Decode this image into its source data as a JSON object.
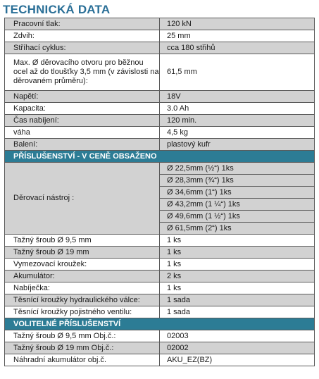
{
  "title": "TECHNICKÁ DATA",
  "specs": [
    {
      "label": "Pracovní tlak:",
      "value": "120 kN"
    },
    {
      "label": "Zdvih:",
      "value": "25 mm"
    },
    {
      "label": "Stříhací cyklus:",
      "value": "cca 180 střihů"
    },
    {
      "label": "Max. Ø děrovacího otvoru pro běžnou ocel až do tloušťky 3,5 mm (v závislosti na děrovaném průměru):",
      "value": "61,5 mm"
    },
    {
      "label": "Napětí:",
      "value": "18V"
    },
    {
      "label": "Kapacita:",
      "value": "3.0 Ah"
    },
    {
      "label": "Čas nabíjení:",
      "value": "120 min."
    },
    {
      "label": "váha",
      "value": "4,5 kg"
    },
    {
      "label": "Balení:",
      "value": "plastový kufr"
    }
  ],
  "section_included": "PŘÍSLUŠENSTVÍ - V CENĚ OBSAŽENO",
  "punch_label": "Děrovací nástroj :",
  "punch_sizes": [
    "Ø 22,5mm (½“)  1ks",
    "Ø 28,3mm (¾“) 1ks",
    "Ø 34,6mm (1“) 1ks",
    "Ø 43,2mm (1 ¼“) 1ks",
    "Ø 49,6mm (1 ½“) 1ks",
    "Ø 61,5mm (2“) 1ks"
  ],
  "included": [
    {
      "label": "Tažný šroub Ø 9,5 mm",
      "value": "1 ks"
    },
    {
      "label": "Tažný šroub Ø 19 mm",
      "value": "1 ks"
    },
    {
      "label": "Vymezovací kroužek:",
      "value": "1 ks"
    },
    {
      "label": "Akumulátor:",
      "value": "2 ks"
    },
    {
      "label": "Nabíječka:",
      "value": "1 ks"
    },
    {
      "label": "Těsnící kroužky hydraulického válce:",
      "value": "1 sada"
    },
    {
      "label": "Těsnící kroužky pojistného ventilu:",
      "value": "1 sada"
    }
  ],
  "section_optional": "VOLITELNÉ PŘÍSLUŠENSTVÍ",
  "optional": [
    {
      "label": "Tažný šroub Ø 9,5 mm Obj.č.:",
      "value": "02003"
    },
    {
      "label": "Tažný šroub Ø 19 mm  Obj.č.:",
      "value": "02002"
    },
    {
      "label": "Náhradní akumulátor obj.č.",
      "value": "AKU_EZ(BZ)"
    }
  ]
}
